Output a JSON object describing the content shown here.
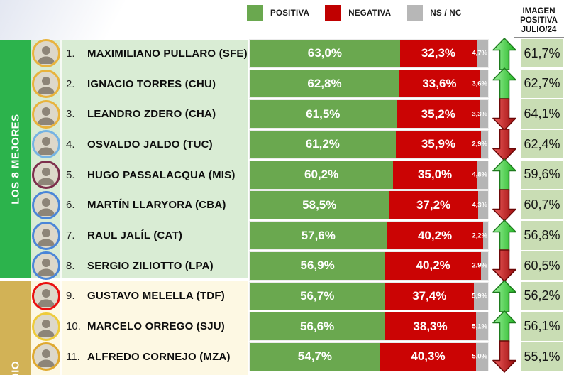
{
  "legend": {
    "items": [
      {
        "name": "positiva",
        "label": "POSITIVA",
        "color": "#6aa84f"
      },
      {
        "name": "negativa",
        "label": "NEGATIVA",
        "color": "#c00000"
      },
      {
        "name": "nsnc",
        "label": "NS / NC",
        "color": "#b7b7b7"
      }
    ]
  },
  "right_header": {
    "lines": [
      "IMAGEN",
      "POSITIVA",
      "JULIO/24"
    ]
  },
  "bands": {
    "mejores": {
      "label": "LOS 8 MEJORES",
      "color": "#2cb34c"
    },
    "promedio": {
      "label": "DIO",
      "color": "#d2b256"
    }
  },
  "colors": {
    "bar_positive": "#6aa84f",
    "bar_negative": "#cb0404",
    "bar_nsnc": "#b5b5b5",
    "panel_mejores": "#d9ecd4",
    "panel_promedio": "#fdf8e3",
    "prev_cell": "#c9ddb4",
    "band_mejores": "#2cb34c",
    "band_promedio": "#d2b256",
    "arrow_up": "#2dc52d",
    "arrow_down": "#bb1010"
  },
  "rows": [
    {
      "rank": "1.",
      "name": "MAXIMILIANO PULLARO (SFE)",
      "positiva": "63,0%",
      "negativa": "32,3%",
      "nsnc": "4,7%",
      "positiva_value": 63.0,
      "negativa_value": 32.3,
      "nsnc_value": 4.7,
      "trend": "up",
      "imagen_julio": "61,7%",
      "ring_color": "#e8b33c",
      "group": "mejores"
    },
    {
      "rank": "2.",
      "name": "IGNACIO TORRES (CHU)",
      "positiva": "62,8%",
      "negativa": "33,6%",
      "nsnc": "3,6%",
      "positiva_value": 62.8,
      "negativa_value": 33.6,
      "nsnc_value": 3.6,
      "trend": "up",
      "imagen_julio": "62,7%",
      "ring_color": "#e8b33c",
      "group": "mejores"
    },
    {
      "rank": "3.",
      "name": "LEANDRO ZDERO (CHA)",
      "positiva": "61,5%",
      "negativa": "35,2%",
      "nsnc": "3,3%",
      "positiva_value": 61.5,
      "negativa_value": 35.2,
      "nsnc_value": 3.3,
      "trend": "down",
      "imagen_julio": "64,1%",
      "ring_color": "#e8b33c",
      "group": "mejores"
    },
    {
      "rank": "4.",
      "name": "OSVALDO JALDO (TUC)",
      "positiva": "61,2%",
      "negativa": "35,9%",
      "nsnc": "2,9%",
      "positiva_value": 61.2,
      "negativa_value": 35.9,
      "nsnc_value": 2.9,
      "trend": "down",
      "imagen_julio": "62,4%",
      "ring_color": "#74b3e3",
      "group": "mejores"
    },
    {
      "rank": "5.",
      "name": "HUGO PASSALACQUA (MIS)",
      "positiva": "60,2%",
      "negativa": "35,0%",
      "nsnc": "4,8%",
      "positiva_value": 60.2,
      "negativa_value": 35.0,
      "nsnc_value": 4.8,
      "trend": "up",
      "imagen_julio": "59,6%",
      "ring_color": "#7d2f4c",
      "group": "mejores"
    },
    {
      "rank": "6.",
      "name": "MARTÍN LLARYORA (CBA)",
      "positiva": "58,5%",
      "negativa": "37,2%",
      "nsnc": "4,3%",
      "positiva_value": 58.5,
      "negativa_value": 37.2,
      "nsnc_value": 4.3,
      "trend": "down",
      "imagen_julio": "60,7%",
      "ring_color": "#4a86d8",
      "group": "mejores"
    },
    {
      "rank": "7.",
      "name": "RAUL JALÍL (CAT)",
      "positiva": "57,6%",
      "negativa": "40,2%",
      "nsnc": "2,2%",
      "positiva_value": 57.6,
      "negativa_value": 40.2,
      "nsnc_value": 2.2,
      "trend": "up",
      "imagen_julio": "56,8%",
      "ring_color": "#4a86d8",
      "group": "mejores"
    },
    {
      "rank": "8.",
      "name": "SERGIO ZILIOTTO (LPA)",
      "positiva": "56,9%",
      "negativa": "40,2%",
      "nsnc": "2,9%",
      "positiva_value": 56.9,
      "negativa_value": 40.2,
      "nsnc_value": 2.9,
      "trend": "down",
      "imagen_julio": "60,5%",
      "ring_color": "#4a86d8",
      "group": "mejores"
    },
    {
      "rank": "9.",
      "name": "GUSTAVO MELELLA (TDF)",
      "positiva": "56,7%",
      "negativa": "37,4%",
      "nsnc": "5,9%",
      "positiva_value": 56.7,
      "negativa_value": 37.4,
      "nsnc_value": 5.9,
      "trend": "up",
      "imagen_julio": "56,2%",
      "ring_color": "#ea1010",
      "group": "promedio"
    },
    {
      "rank": "10.",
      "name": "MARCELO ORREGO (SJU)",
      "positiva": "56,6%",
      "negativa": "38,3%",
      "nsnc": "5,1%",
      "positiva_value": 56.6,
      "negativa_value": 38.3,
      "nsnc_value": 5.1,
      "trend": "up",
      "imagen_julio": "56,1%",
      "ring_color": "#eecb3a",
      "group": "promedio"
    },
    {
      "rank": "11.",
      "name": "ALFREDO CORNEJO (MZA)",
      "positiva": "54,7%",
      "negativa": "40,3%",
      "nsnc": "5,0%",
      "positiva_value": 54.7,
      "negativa_value": 40.3,
      "nsnc_value": 5.0,
      "trend": "down",
      "imagen_julio": "55,1%",
      "ring_color": "#dfa92f",
      "group": "promedio"
    }
  ],
  "chart_data": {
    "type": "bar",
    "subtype": "horizontal-stacked-ranking",
    "categories": [
      "MAXIMILIANO PULLARO (SFE)",
      "IGNACIO TORRES (CHU)",
      "LEANDRO ZDERO (CHA)",
      "OSVALDO JALDO (TUC)",
      "HUGO PASSALACQUA (MIS)",
      "MARTÍN LLARYORA (CBA)",
      "RAUL JALÍL (CAT)",
      "SERGIO ZILIOTTO (LPA)",
      "GUSTAVO MELELLA (TDF)",
      "MARCELO ORREGO (SJU)",
      "ALFREDO CORNEJO (MZA)"
    ],
    "ranks": [
      "1.",
      "2.",
      "3.",
      "4.",
      "5.",
      "6.",
      "7.",
      "8.",
      "9.",
      "10.",
      "11."
    ],
    "series": [
      {
        "name": "POSITIVA",
        "color": "#6aa84f",
        "values": [
          63.0,
          62.8,
          61.5,
          61.2,
          60.2,
          58.5,
          57.6,
          56.9,
          56.7,
          56.6,
          54.7
        ]
      },
      {
        "name": "NEGATIVA",
        "color": "#c00000",
        "values": [
          32.3,
          33.6,
          35.2,
          35.9,
          35.0,
          37.2,
          40.2,
          40.2,
          37.4,
          38.3,
          40.3
        ]
      },
      {
        "name": "NS / NC",
        "color": "#b7b7b7",
        "values": [
          4.7,
          3.6,
          3.3,
          2.9,
          4.8,
          4.3,
          2.2,
          2.9,
          5.9,
          5.1,
          5.0
        ]
      }
    ],
    "reference_column": {
      "name": "IMAGEN POSITIVA JULIO/24",
      "values": [
        61.7,
        62.7,
        64.1,
        62.4,
        59.6,
        60.7,
        56.8,
        60.5,
        56.2,
        56.1,
        55.1
      ]
    },
    "trend_vs_julio": [
      "up",
      "up",
      "down",
      "down",
      "up",
      "down",
      "up",
      "down",
      "up",
      "up",
      "down"
    ],
    "group_bands": [
      {
        "label": "LOS 8 MEJORES",
        "rows": [
          1,
          8
        ]
      },
      {
        "label": "DIO",
        "rows": [
          9,
          11
        ]
      }
    ],
    "xlim": [
      0,
      100
    ],
    "legend_position": "top",
    "title": ""
  }
}
